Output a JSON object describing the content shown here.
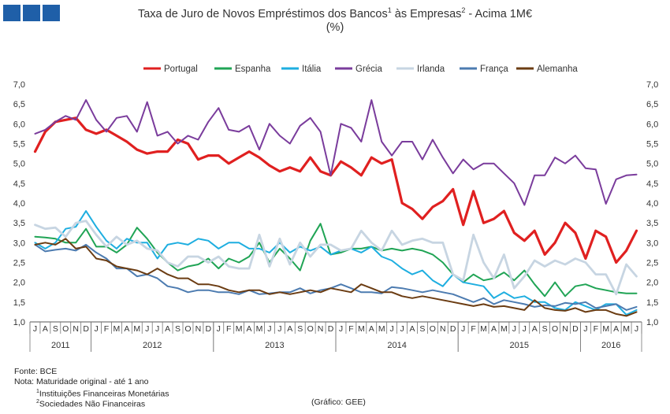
{
  "header": {
    "title_main": "Taxa de Juro de Novos Empréstimos  dos Bancos",
    "title_sup1": "1",
    "title_mid": " às Empresas",
    "title_sup2": "2",
    "title_end": " - Acima 1M€",
    "subtitle": "(%)"
  },
  "colors": {
    "brand": "#1f5fa8",
    "portugal": "#e02020",
    "espanha": "#20a455",
    "italia": "#1eaee0",
    "grecia": "#7a3c9c",
    "irlanda": "#c7d5e2",
    "franca": "#4c7bb0",
    "alemanha": "#6b3c12"
  },
  "footer": {
    "fonte": "Fonte: BCE",
    "nota": "Nota: Maturidade original - até 1 ano",
    "note1_sup": "1",
    "note1": "Instituições Financeiras Monetárias",
    "note2_sup": "2",
    "note2": "Sociedades Não Financeiras",
    "credit": "(Gráfico: GEE)"
  },
  "chart_data": {
    "type": "line",
    "ylim": [
      1.0,
      7.0
    ],
    "yticks": [
      "1,0",
      "1,5",
      "2,0",
      "2,5",
      "3,0",
      "3,5",
      "4,0",
      "4,5",
      "5,0",
      "5,5",
      "6,0",
      "6,5",
      "7,0"
    ],
    "y_axis_right": true,
    "legend_position": "top",
    "x_months": [
      "J",
      "A",
      "S",
      "O",
      "N",
      "D",
      "J",
      "F",
      "M",
      "A",
      "M",
      "J",
      "J",
      "A",
      "S",
      "O",
      "N",
      "D",
      "J",
      "F",
      "M",
      "A",
      "M",
      "J",
      "J",
      "A",
      "S",
      "O",
      "N",
      "D",
      "J",
      "F",
      "M",
      "A",
      "M",
      "J",
      "J",
      "A",
      "S",
      "O",
      "N",
      "D",
      "J",
      "F",
      "M",
      "A",
      "M",
      "J",
      "J",
      "A",
      "S",
      "O",
      "N",
      "D",
      "J",
      "F",
      "M",
      "A",
      "M",
      "J"
    ],
    "years": [
      {
        "label": "2011",
        "start": 0,
        "count": 6
      },
      {
        "label": "2012",
        "start": 6,
        "count": 12
      },
      {
        "label": "2013",
        "start": 18,
        "count": 12
      },
      {
        "label": "2014",
        "start": 30,
        "count": 12
      },
      {
        "label": "2015",
        "start": 42,
        "count": 12
      },
      {
        "label": "2016",
        "start": 54,
        "count": 6
      }
    ],
    "series": [
      {
        "name": "Portugal",
        "color": "#e02020",
        "width": 3.2,
        "values": [
          5.3,
          5.8,
          6.05,
          6.1,
          6.15,
          5.85,
          5.75,
          5.85,
          5.7,
          5.55,
          5.35,
          5.25,
          5.3,
          5.3,
          5.6,
          5.5,
          5.1,
          5.2,
          5.2,
          5.0,
          5.15,
          5.3,
          5.15,
          4.95,
          4.8,
          4.9,
          4.8,
          5.15,
          4.8,
          4.7,
          5.05,
          4.9,
          4.7,
          5.15,
          5.0,
          5.1,
          4.0,
          3.85,
          3.6,
          3.9,
          4.05,
          4.35,
          3.45,
          4.3,
          3.5,
          3.6,
          3.8,
          3.25,
          3.05,
          3.3,
          2.7,
          3.0,
          3.5,
          3.25,
          2.6,
          3.3,
          3.15,
          2.5,
          2.8,
          3.3
        ]
      },
      {
        "name": "Espanha",
        "color": "#20a455",
        "width": 2,
        "values": [
          3.15,
          3.13,
          3.1,
          3.0,
          3.0,
          3.35,
          2.9,
          2.9,
          2.75,
          2.95,
          3.38,
          3.1,
          2.75,
          2.5,
          2.3,
          2.4,
          2.45,
          2.6,
          2.35,
          2.6,
          2.5,
          2.65,
          3.0,
          2.5,
          2.85,
          2.6,
          2.3,
          3.05,
          3.48,
          2.7,
          2.75,
          2.85,
          2.85,
          2.9,
          2.8,
          2.85,
          2.8,
          2.85,
          2.8,
          2.7,
          2.5,
          2.2,
          2.0,
          2.2,
          2.05,
          2.1,
          2.25,
          2.05,
          2.3,
          1.95,
          1.65,
          2.0,
          1.65,
          1.9,
          1.95,
          1.85,
          1.8,
          1.75,
          1.72,
          1.72
        ]
      },
      {
        "name": "Itália",
        "color": "#1eaee0",
        "width": 2,
        "values": [
          3.0,
          2.85,
          3.0,
          3.35,
          3.4,
          3.8,
          3.4,
          3.05,
          2.85,
          3.1,
          3.0,
          3.0,
          2.6,
          2.95,
          3.0,
          2.95,
          3.1,
          3.05,
          2.85,
          3.0,
          3.0,
          2.85,
          2.85,
          2.75,
          3.0,
          2.75,
          2.9,
          2.8,
          2.9,
          2.7,
          2.8,
          2.85,
          2.75,
          2.9,
          2.65,
          2.55,
          2.35,
          2.2,
          2.3,
          2.05,
          1.9,
          2.2,
          2.0,
          1.95,
          1.9,
          1.6,
          1.75,
          1.6,
          1.65,
          1.5,
          1.5,
          1.35,
          1.3,
          1.5,
          1.4,
          1.3,
          1.45,
          1.45,
          1.18,
          1.3
        ]
      },
      {
        "name": "Grécia",
        "color": "#7a3c9c",
        "width": 2,
        "values": [
          5.75,
          5.85,
          6.05,
          6.2,
          6.1,
          6.6,
          6.1,
          5.8,
          6.15,
          6.2,
          5.8,
          6.55,
          5.7,
          5.8,
          5.5,
          5.7,
          5.6,
          6.05,
          6.4,
          5.85,
          5.8,
          5.95,
          5.35,
          6.0,
          5.7,
          5.5,
          5.95,
          6.15,
          5.8,
          4.7,
          6.0,
          5.9,
          5.55,
          6.6,
          5.55,
          5.2,
          5.55,
          5.55,
          5.1,
          5.6,
          5.15,
          4.75,
          5.1,
          4.85,
          5.0,
          5.0,
          4.75,
          4.5,
          3.95,
          4.7,
          4.7,
          5.15,
          5.0,
          5.2,
          4.88,
          4.85,
          3.98,
          4.6,
          4.7,
          4.72
        ]
      },
      {
        "name": "Irlanda",
        "color": "#c7d5e2",
        "width": 2.8,
        "values": [
          3.45,
          3.35,
          3.38,
          3.15,
          3.5,
          3.55,
          3.2,
          2.9,
          3.15,
          2.95,
          3.05,
          2.85,
          2.8,
          2.5,
          2.4,
          2.65,
          2.65,
          2.5,
          2.65,
          2.4,
          2.35,
          2.35,
          3.2,
          2.4,
          3.1,
          2.45,
          3.0,
          2.65,
          2.95,
          2.95,
          2.8,
          2.85,
          3.3,
          3.0,
          2.8,
          3.3,
          2.95,
          3.05,
          3.1,
          3.0,
          3.0,
          2.2,
          2.05,
          3.2,
          2.5,
          2.1,
          2.7,
          1.85,
          2.15,
          2.55,
          2.4,
          2.55,
          2.45,
          2.6,
          2.5,
          2.2,
          2.2,
          1.7,
          2.45,
          2.15
        ]
      },
      {
        "name": "França",
        "color": "#4c7bb0",
        "width": 2,
        "values": [
          2.95,
          2.78,
          2.82,
          2.85,
          2.8,
          2.95,
          2.75,
          2.6,
          2.35,
          2.35,
          2.15,
          2.2,
          2.1,
          1.9,
          1.85,
          1.75,
          1.8,
          1.8,
          1.75,
          1.75,
          1.7,
          1.8,
          1.7,
          1.72,
          1.75,
          1.75,
          1.85,
          1.72,
          1.8,
          1.85,
          1.95,
          1.85,
          1.75,
          1.75,
          1.72,
          1.88,
          1.85,
          1.8,
          1.75,
          1.8,
          1.75,
          1.7,
          1.6,
          1.5,
          1.6,
          1.45,
          1.55,
          1.5,
          1.45,
          1.38,
          1.42,
          1.4,
          1.48,
          1.45,
          1.5,
          1.35,
          1.4,
          1.45,
          1.3,
          1.38
        ]
      },
      {
        "name": "Alemanha",
        "color": "#6b3c12",
        "width": 2,
        "values": [
          2.95,
          3.0,
          2.95,
          3.1,
          2.85,
          2.9,
          2.6,
          2.55,
          2.4,
          2.35,
          2.3,
          2.2,
          2.35,
          2.2,
          2.1,
          2.1,
          1.95,
          1.95,
          1.9,
          1.8,
          1.75,
          1.8,
          1.8,
          1.7,
          1.75,
          1.7,
          1.75,
          1.8,
          1.75,
          1.85,
          1.8,
          1.75,
          1.95,
          1.85,
          1.75,
          1.75,
          1.65,
          1.6,
          1.65,
          1.6,
          1.55,
          1.5,
          1.45,
          1.4,
          1.45,
          1.38,
          1.4,
          1.35,
          1.3,
          1.55,
          1.35,
          1.3,
          1.28,
          1.35,
          1.25,
          1.3,
          1.3,
          1.2,
          1.15,
          1.25
        ]
      }
    ]
  }
}
